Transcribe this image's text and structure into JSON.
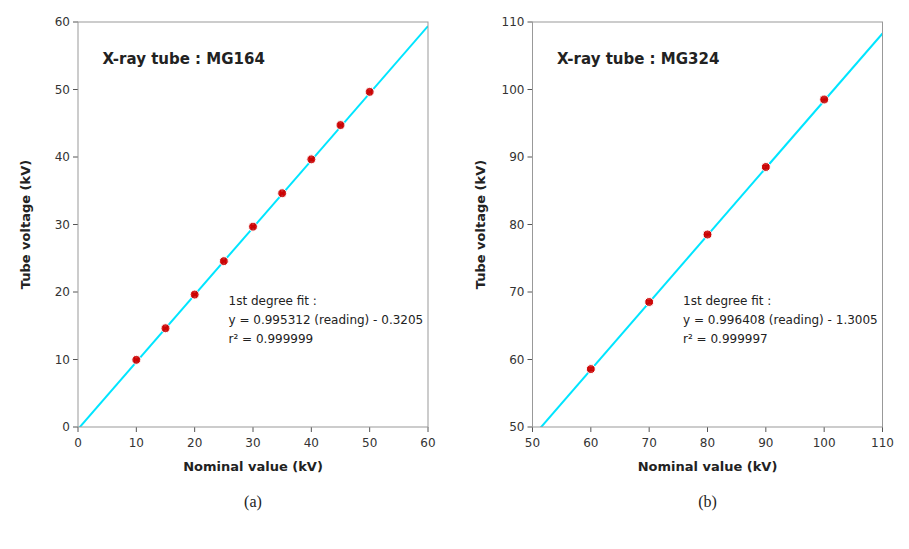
{
  "chart_data": [
    {
      "type": "scatter",
      "title": "X-ray tube : MG164",
      "xlabel": "Nominal value (kV)",
      "ylabel": "Tube voltage (kV)",
      "xlim": [
        0,
        60
      ],
      "ylim": [
        0,
        60
      ],
      "xticks": [
        0,
        10,
        20,
        30,
        40,
        50,
        60
      ],
      "yticks": [
        0,
        10,
        20,
        30,
        40,
        50,
        60
      ],
      "x": [
        10,
        15,
        20,
        25,
        30,
        35,
        40,
        45,
        50
      ],
      "values": [
        9.95,
        14.63,
        19.62,
        24.57,
        29.68,
        34.63,
        39.65,
        44.73,
        49.65
      ],
      "xerr": [
        0.3,
        0.3,
        0.3,
        0.3,
        0.3,
        0.3,
        0.3,
        0.3,
        0.3
      ],
      "yerr": [
        0.15,
        0.15,
        0.15,
        0.15,
        0.15,
        0.15,
        0.15,
        0.15,
        0.15
      ],
      "color": "#CC0000",
      "fit": {
        "slope": 0.995312,
        "intercept": -0.3205,
        "color": "#00E5FF"
      },
      "annotations": [
        "1st degree fit :",
        "y = 0.995312 (reading) - 0.3205",
        "r² = 0.999999"
      ],
      "caption": "(a)"
    },
    {
      "type": "scatter",
      "title": "X-ray tube : MG324",
      "xlabel": "Nominal value (kV)",
      "ylabel": "Tube voltage (kV)",
      "xlim": [
        50,
        110
      ],
      "ylim": [
        50,
        110
      ],
      "xticks": [
        50,
        60,
        70,
        80,
        90,
        100,
        110
      ],
      "yticks": [
        50,
        60,
        70,
        80,
        90,
        100,
        110
      ],
      "x": [
        60,
        70,
        80,
        90,
        100
      ],
      "values": [
        58.58,
        68.52,
        78.52,
        88.52,
        98.52
      ],
      "xerr": [
        0.5,
        0.5,
        0.5,
        0.5,
        0.5
      ],
      "yerr": [
        0.2,
        0.2,
        0.2,
        0.2,
        0.2
      ],
      "color": "#CC0000",
      "fit": {
        "slope": 0.996408,
        "intercept": -1.3005,
        "color": "#00E5FF"
      },
      "annotations": [
        "1st degree fit :",
        "y = 0.996408 (reading) - 1.3005",
        "r² = 0.999997"
      ],
      "caption": "(b)"
    }
  ]
}
